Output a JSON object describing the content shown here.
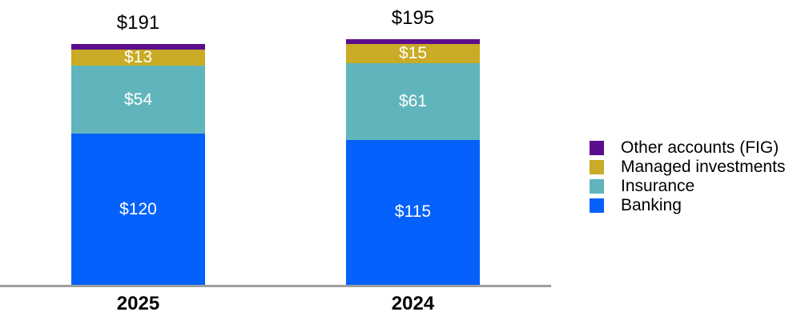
{
  "chart_data": {
    "type": "bar",
    "stacked": true,
    "orientation": "vertical",
    "categories": [
      "2025",
      "2024"
    ],
    "series": [
      {
        "name": "Banking",
        "color": "#0561FB",
        "values": [
          120,
          115
        ],
        "labels": [
          "$120",
          "$115"
        ]
      },
      {
        "name": "Insurance",
        "color": "#5FB5BB",
        "values": [
          54,
          61
        ],
        "labels": [
          "$54",
          "$61"
        ]
      },
      {
        "name": "Managed investments",
        "color": "#C9AB25",
        "values": [
          13,
          15
        ],
        "labels": [
          "$13",
          "$15"
        ]
      },
      {
        "name": "Other accounts (FIG)",
        "color": "#5B0E8C",
        "values": [
          4,
          4
        ],
        "labels": [
          "",
          ""
        ]
      }
    ],
    "totals": [
      191,
      195
    ],
    "total_labels": [
      "$191",
      "$195"
    ],
    "legend": [
      {
        "label": "Other accounts (FIG)",
        "color": "#5B0E8C"
      },
      {
        "label": "Managed investments",
        "color": "#C9AB25"
      },
      {
        "label": "Insurance",
        "color": "#5FB5BB"
      },
      {
        "label": "Banking",
        "color": "#0561FB"
      }
    ],
    "legend_position": "right",
    "value_label_color": "#FFFFFF",
    "axis_line_color": "#9E9E9E",
    "grid": false,
    "ylim": [
      0,
      195
    ]
  }
}
